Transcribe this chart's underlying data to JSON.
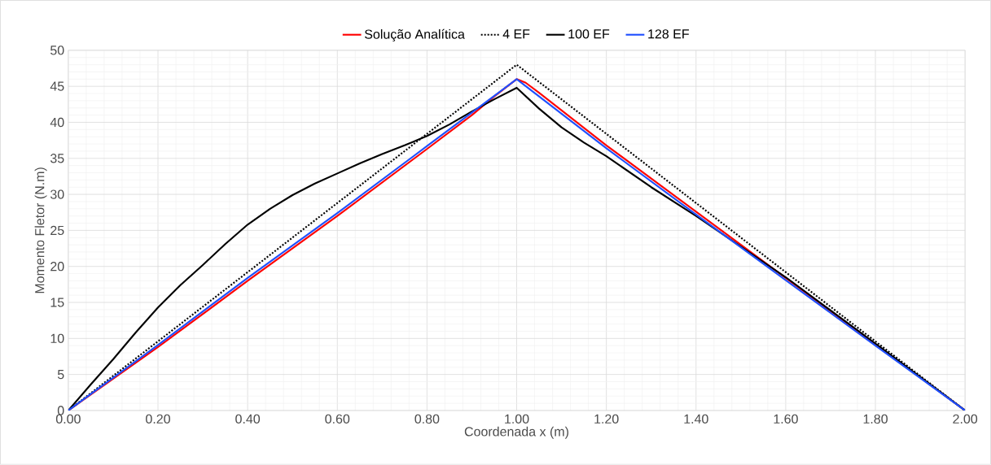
{
  "chart_data": {
    "type": "line",
    "xlabel": "Coordenada x (m)",
    "ylabel": "Momento Fletor (N.m)",
    "xlim": [
      0,
      2
    ],
    "ylim": [
      0,
      50
    ],
    "xticks": [
      {
        "value": 0,
        "label": "0.00"
      },
      {
        "value": 0.2,
        "label": "0.20"
      },
      {
        "value": 0.4,
        "label": "0.40"
      },
      {
        "value": 0.6,
        "label": "0.60"
      },
      {
        "value": 0.8,
        "label": "0.80"
      },
      {
        "value": 1,
        "label": "1.00"
      },
      {
        "value": 1.2,
        "label": "1.20"
      },
      {
        "value": 1.4,
        "label": "1.40"
      },
      {
        "value": 1.6,
        "label": "1.60"
      },
      {
        "value": 1.8,
        "label": "1.80"
      },
      {
        "value": 2,
        "label": "2.00"
      }
    ],
    "yticks": [
      0,
      5,
      10,
      15,
      20,
      25,
      30,
      35,
      40,
      45,
      50
    ],
    "grid": true,
    "legend": "top",
    "marker": "none",
    "series": [
      {
        "name": "Solução Analítica",
        "color": "#ff0000",
        "line_style": "solid",
        "x": [
          0,
          0.2,
          0.4,
          0.6,
          0.8,
          0.9,
          0.95,
          1.0,
          1.02,
          1.05,
          1.2,
          1.4,
          1.6,
          2.0
        ],
        "values": [
          0,
          8.8,
          18.0,
          27.0,
          36.3,
          41.0,
          43.6,
          46.0,
          45.5,
          44.1,
          36.8,
          27.6,
          18.4,
          0
        ]
      },
      {
        "name": "4 EF",
        "color": "#000000",
        "line_style": "dotted",
        "x": [
          0,
          0.5,
          1.0,
          1.5,
          2.0
        ],
        "values": [
          0,
          24,
          48,
          24,
          0
        ]
      },
      {
        "name": "100 EF",
        "color": "#000000",
        "line_style": "solid",
        "x": [
          0,
          0.05,
          0.1,
          0.15,
          0.2,
          0.25,
          0.3,
          0.35,
          0.4,
          0.45,
          0.5,
          0.55,
          0.6,
          0.65,
          0.7,
          0.75,
          0.8,
          0.85,
          0.9,
          0.95,
          1.0,
          1.05,
          1.1,
          1.15,
          1.2,
          1.3,
          1.4,
          1.6,
          1.8,
          2.0
        ],
        "values": [
          0,
          3.6,
          7.1,
          10.8,
          14.3,
          17.4,
          20.2,
          23.1,
          25.8,
          28.0,
          29.9,
          31.5,
          32.9,
          34.3,
          35.6,
          36.8,
          38.1,
          39.7,
          41.5,
          43.2,
          44.8,
          41.9,
          39.3,
          37.2,
          35.3,
          31.0,
          27.0,
          18.5,
          9.3,
          0
        ]
      },
      {
        "name": "128 EF",
        "color": "#1f4fff",
        "line_style": "solid",
        "x": [
          0,
          0.2,
          0.4,
          0.6,
          0.8,
          1.0,
          1.2,
          1.4,
          1.6,
          1.8,
          2.0
        ],
        "values": [
          0,
          9.1,
          18.4,
          27.4,
          36.7,
          46.0,
          36.4,
          27.2,
          18.1,
          9.0,
          0
        ]
      }
    ]
  }
}
